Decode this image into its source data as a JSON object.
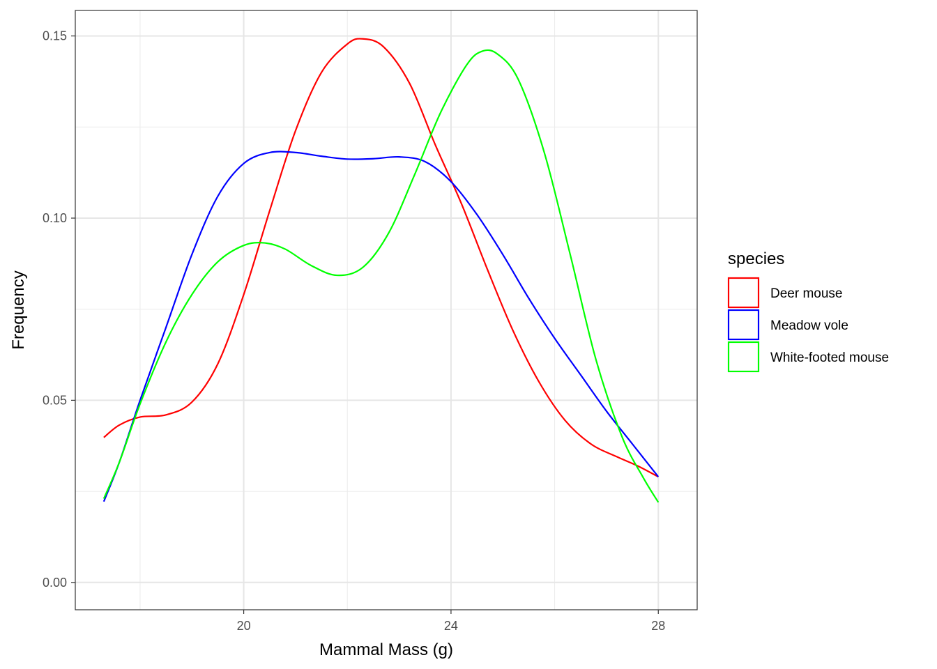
{
  "chart_data": {
    "type": "line",
    "title": "",
    "xlabel": "Mammal Mass (g)",
    "ylabel": "Frequency",
    "xlim": [
      16.75,
      28.75
    ],
    "ylim": [
      -0.0075,
      0.157
    ],
    "x_ticks": [
      20,
      24,
      28
    ],
    "x_tick_labels": [
      "20",
      "24",
      "28"
    ],
    "x_minor_ticks": [
      18,
      22,
      26
    ],
    "y_ticks": [
      0.0,
      0.05,
      0.1,
      0.15
    ],
    "y_tick_labels": [
      "0.00",
      "0.05",
      "0.10",
      "0.15"
    ],
    "y_minor_ticks": [
      0.025,
      0.075,
      0.125
    ],
    "grid": true,
    "legend": {
      "title": "species",
      "placement": "right"
    },
    "series": [
      {
        "name": "Deer mouse",
        "color": "#ff0000",
        "points": [
          [
            17.3,
            0.0398
          ],
          [
            17.6,
            0.0432
          ],
          [
            18.0,
            0.0454
          ],
          [
            18.5,
            0.046
          ],
          [
            19.0,
            0.0495
          ],
          [
            19.5,
            0.06
          ],
          [
            20.0,
            0.079
          ],
          [
            20.5,
            0.102
          ],
          [
            21.0,
            0.124
          ],
          [
            21.5,
            0.14
          ],
          [
            22.0,
            0.1478
          ],
          [
            22.3,
            0.1492
          ],
          [
            22.7,
            0.147
          ],
          [
            23.2,
            0.137
          ],
          [
            23.7,
            0.12
          ],
          [
            24.2,
            0.104
          ],
          [
            24.7,
            0.086
          ],
          [
            25.2,
            0.069
          ],
          [
            25.7,
            0.055
          ],
          [
            26.2,
            0.0445
          ],
          [
            26.7,
            0.038
          ],
          [
            27.2,
            0.0345
          ],
          [
            27.6,
            0.032
          ],
          [
            28.0,
            0.029
          ]
        ]
      },
      {
        "name": "Meadow vole",
        "color": "#0000ff",
        "points": [
          [
            17.3,
            0.0222
          ],
          [
            17.6,
            0.033
          ],
          [
            18.0,
            0.05
          ],
          [
            18.5,
            0.07
          ],
          [
            19.0,
            0.09
          ],
          [
            19.5,
            0.106
          ],
          [
            20.0,
            0.115
          ],
          [
            20.5,
            0.118
          ],
          [
            21.0,
            0.118
          ],
          [
            21.5,
            0.117
          ],
          [
            22.0,
            0.1162
          ],
          [
            22.5,
            0.1163
          ],
          [
            23.0,
            0.1168
          ],
          [
            23.5,
            0.1155
          ],
          [
            24.0,
            0.11
          ],
          [
            24.5,
            0.101
          ],
          [
            25.0,
            0.09
          ],
          [
            25.5,
            0.078
          ],
          [
            26.0,
            0.067
          ],
          [
            26.5,
            0.057
          ],
          [
            27.0,
            0.047
          ],
          [
            27.5,
            0.038
          ],
          [
            28.0,
            0.029
          ]
        ]
      },
      {
        "name": "White-footed mouse",
        "color": "#00ff00",
        "points": [
          [
            17.3,
            0.023
          ],
          [
            17.6,
            0.033
          ],
          [
            18.0,
            0.049
          ],
          [
            18.5,
            0.066
          ],
          [
            19.0,
            0.079
          ],
          [
            19.5,
            0.088
          ],
          [
            20.0,
            0.0925
          ],
          [
            20.4,
            0.0932
          ],
          [
            20.8,
            0.0915
          ],
          [
            21.3,
            0.087
          ],
          [
            21.8,
            0.0843
          ],
          [
            22.3,
            0.0865
          ],
          [
            22.8,
            0.096
          ],
          [
            23.3,
            0.112
          ],
          [
            23.8,
            0.129
          ],
          [
            24.3,
            0.142
          ],
          [
            24.6,
            0.1458
          ],
          [
            24.9,
            0.145
          ],
          [
            25.3,
            0.138
          ],
          [
            25.8,
            0.118
          ],
          [
            26.3,
            0.09
          ],
          [
            26.8,
            0.061
          ],
          [
            27.3,
            0.04
          ],
          [
            27.7,
            0.029
          ],
          [
            28.0,
            0.022
          ]
        ]
      }
    ]
  }
}
